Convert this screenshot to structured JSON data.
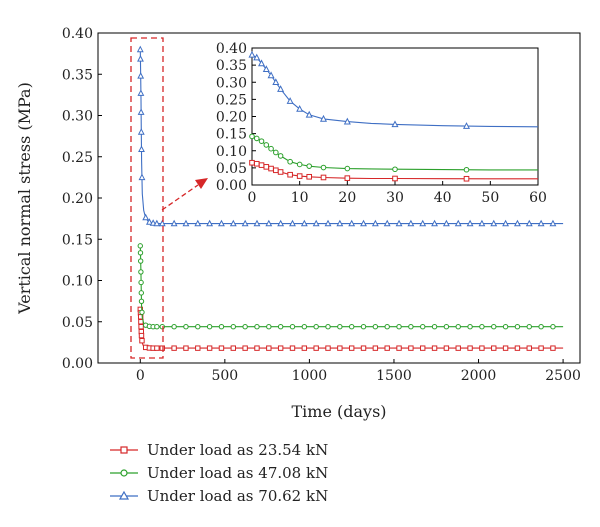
{
  "chart_data": [
    {
      "type": "line",
      "xlabel": "Time (days)",
      "ylabel": "Vertical normal stress (MPa)",
      "xlim": [
        -250,
        2600
      ],
      "ylim": [
        0,
        0.4
      ],
      "x_ticks": [
        "0",
        "500",
        "1000",
        "1500",
        "2000",
        "2500"
      ],
      "y_ticks": [
        "0.00",
        "0.05",
        "0.10",
        "0.15",
        "0.20",
        "0.25",
        "0.30",
        "0.35",
        "0.40"
      ],
      "legend_position": "bottom-left, outside plot",
      "series": [
        {
          "name": "Under load as 23.54 kN",
          "color": "#d62728",
          "marker": "square",
          "x": [
            0,
            2,
            4,
            6,
            8,
            12,
            20,
            30,
            45,
            60,
            100,
            200,
            400,
            600,
            800,
            1000,
            1300,
            1600,
            2000,
            2500
          ],
          "y": [
            0.065,
            0.058,
            0.048,
            0.038,
            0.03,
            0.024,
            0.02,
            0.019,
            0.0185,
            0.018,
            0.018,
            0.018,
            0.018,
            0.018,
            0.018,
            0.018,
            0.018,
            0.018,
            0.018,
            0.018
          ]
        },
        {
          "name": "Under load as 47.08 kN",
          "color": "#2ca02c",
          "marker": "circle",
          "x": [
            0,
            2,
            4,
            6,
            8,
            12,
            20,
            30,
            45,
            60,
            100,
            200,
            400,
            600,
            800,
            1000,
            1300,
            1600,
            2000,
            2500
          ],
          "y": [
            0.142,
            0.128,
            0.106,
            0.085,
            0.068,
            0.055,
            0.048,
            0.046,
            0.045,
            0.044,
            0.044,
            0.044,
            0.044,
            0.044,
            0.044,
            0.044,
            0.044,
            0.044,
            0.044,
            0.044
          ]
        },
        {
          "name": "Under load as 70.62 kN",
          "color": "#3f6fc4",
          "marker": "triangle",
          "x": [
            0,
            1,
            2,
            4,
            6,
            8,
            12,
            20,
            30,
            45,
            60,
            100,
            200,
            400,
            600,
            800,
            1000,
            1300,
            1600,
            2000,
            2500
          ],
          "y": [
            0.38,
            0.372,
            0.355,
            0.32,
            0.28,
            0.245,
            0.205,
            0.185,
            0.177,
            0.172,
            0.17,
            0.169,
            0.169,
            0.169,
            0.169,
            0.169,
            0.169,
            0.169,
            0.169,
            0.169,
            0.169
          ]
        }
      ]
    },
    {
      "type": "line",
      "role": "inset (zoom of the dashed red region)",
      "xlim": [
        0,
        60
      ],
      "ylim": [
        0,
        0.4
      ],
      "x_ticks": [
        "0",
        "10",
        "20",
        "30",
        "40",
        "50",
        "60"
      ],
      "y_ticks": [
        "0.00",
        "0.05",
        "0.10",
        "0.15",
        "0.20",
        "0.25",
        "0.30",
        "0.35",
        "0.40"
      ],
      "series": [
        {
          "name": "Under load as 23.54 kN",
          "color": "#d62728",
          "marker": "square",
          "x": [
            0,
            1,
            2,
            3,
            4,
            5,
            6,
            8,
            10,
            12,
            15,
            20,
            25,
            30,
            40,
            50,
            60
          ],
          "y": [
            0.065,
            0.062,
            0.058,
            0.053,
            0.048,
            0.043,
            0.038,
            0.03,
            0.026,
            0.024,
            0.022,
            0.02,
            0.019,
            0.019,
            0.0185,
            0.018,
            0.018
          ]
        },
        {
          "name": "Under load as 47.08 kN",
          "color": "#2ca02c",
          "marker": "circle",
          "x": [
            0,
            1,
            2,
            3,
            4,
            5,
            6,
            8,
            10,
            12,
            15,
            20,
            25,
            30,
            40,
            50,
            60
          ],
          "y": [
            0.142,
            0.136,
            0.128,
            0.117,
            0.106,
            0.095,
            0.085,
            0.068,
            0.06,
            0.055,
            0.051,
            0.048,
            0.047,
            0.046,
            0.045,
            0.044,
            0.044
          ]
        },
        {
          "name": "Under load as 70.62 kN",
          "color": "#3f6fc4",
          "marker": "triangle",
          "x": [
            0,
            1,
            2,
            3,
            4,
            5,
            6,
            8,
            10,
            12,
            15,
            20,
            25,
            30,
            40,
            50,
            60
          ],
          "y": [
            0.38,
            0.372,
            0.355,
            0.338,
            0.32,
            0.3,
            0.28,
            0.245,
            0.222,
            0.205,
            0.193,
            0.185,
            0.18,
            0.177,
            0.173,
            0.171,
            0.17
          ]
        }
      ]
    }
  ]
}
